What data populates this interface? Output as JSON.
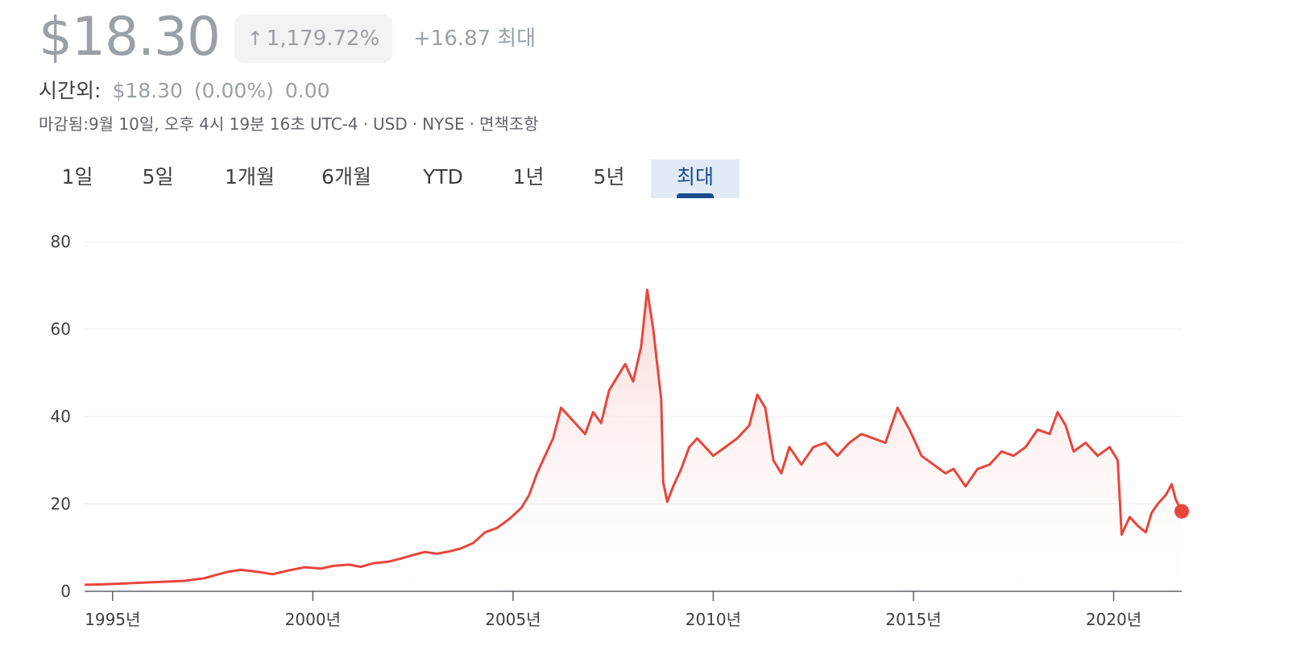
{
  "quote": {
    "price": "$18.30",
    "change_pct": "1,179.72%",
    "change_abs": "+16.87",
    "period_label": "최대",
    "arrow_icon": "arrow-up-icon"
  },
  "after_hours": {
    "label": "시간외:",
    "price": "$18.30",
    "pct": "(0.00%)",
    "change": "0.00"
  },
  "meta": {
    "closed": "마감됨:9월 10일, 오후 4시 19분 16초 UTC-4",
    "currency": "USD",
    "exchange": "NYSE",
    "disclaimer": "면책조항",
    "separator": "·"
  },
  "tabs": [
    {
      "label": "1일"
    },
    {
      "label": "5일"
    },
    {
      "label": "1개월"
    },
    {
      "label": "6개월"
    },
    {
      "label": "YTD"
    },
    {
      "label": "1년"
    },
    {
      "label": "5년"
    },
    {
      "label": "최대",
      "active": true
    }
  ],
  "colors": {
    "line": "#e8453c",
    "fill": "#fbe3e1",
    "grid": "#ececec",
    "tab_active_bg": "#e1ebf8",
    "tab_active_text": "#1a4b8c"
  },
  "chart_data": {
    "type": "line",
    "title": "",
    "xlabel": "",
    "ylabel": "",
    "ylim": [
      0,
      80
    ],
    "yticks": [
      0,
      20,
      40,
      60,
      80
    ],
    "xticks": [
      {
        "value": 1995,
        "label": "1995년"
      },
      {
        "value": 2000,
        "label": "2000년"
      },
      {
        "value": 2005,
        "label": "2005년"
      },
      {
        "value": 2010,
        "label": "2010년"
      },
      {
        "value": 2015,
        "label": "2015년"
      },
      {
        "value": 2020,
        "label": "2020년"
      }
    ],
    "xlim": [
      1994.3,
      2021.7
    ],
    "grid": true,
    "legend": "none",
    "series": [
      {
        "x": [
          1994.3,
          1994.8,
          1995.3,
          1995.8,
          1996.3,
          1996.8,
          1997.3,
          1997.6,
          1997.9,
          1998.2,
          1998.5,
          1998.8,
          1999.0,
          1999.4,
          1999.8,
          2000.2,
          2000.5,
          2000.9,
          2001.2,
          2001.5,
          2001.9,
          2002.2,
          2002.5,
          2002.8,
          2003.1,
          2003.4,
          2003.7,
          2004.0,
          2004.3,
          2004.6,
          2004.9,
          2005.2,
          2005.4,
          2005.6,
          2005.8,
          2006.0,
          2006.2,
          2006.4,
          2006.6,
          2006.8,
          2007.0,
          2007.2,
          2007.4,
          2007.6,
          2007.8,
          2008.0,
          2008.2,
          2008.35,
          2008.5,
          2008.6,
          2008.7,
          2008.75,
          2008.85,
          2009.0,
          2009.2,
          2009.4,
          2009.6,
          2009.8,
          2010.0,
          2010.3,
          2010.6,
          2010.9,
          2011.1,
          2011.3,
          2011.5,
          2011.7,
          2011.9,
          2012.2,
          2012.5,
          2012.8,
          2013.1,
          2013.4,
          2013.7,
          2014.0,
          2014.3,
          2014.6,
          2014.9,
          2015.2,
          2015.5,
          2015.8,
          2016.0,
          2016.3,
          2016.6,
          2016.9,
          2017.2,
          2017.5,
          2017.8,
          2018.1,
          2018.4,
          2018.6,
          2018.8,
          2019.0,
          2019.3,
          2019.6,
          2019.9,
          2020.1,
          2020.2,
          2020.4,
          2020.6,
          2020.8,
          2020.95,
          2021.1,
          2021.3,
          2021.45,
          2021.55,
          2021.7
        ],
        "values": [
          1.5,
          1.6,
          1.8,
          2.0,
          2.2,
          2.4,
          3.0,
          3.8,
          4.5,
          4.9,
          4.6,
          4.2,
          3.9,
          4.8,
          5.5,
          5.2,
          5.8,
          6.1,
          5.6,
          6.4,
          6.8,
          7.5,
          8.3,
          9.0,
          8.6,
          9.1,
          9.8,
          11.0,
          13.5,
          14.5,
          16.5,
          19.0,
          22.0,
          27.0,
          31.0,
          35.0,
          42.0,
          40.0,
          38.0,
          36.0,
          41.0,
          38.5,
          46.0,
          49.0,
          52.0,
          48.0,
          56.0,
          69.0,
          60.0,
          52.0,
          44.0,
          25.0,
          20.5,
          24.0,
          28.0,
          33.0,
          35.0,
          33.0,
          31.0,
          33.0,
          35.0,
          38.0,
          45.0,
          42.0,
          30.0,
          27.0,
          33.0,
          29.0,
          33.0,
          34.0,
          31.0,
          34.0,
          36.0,
          35.0,
          34.0,
          42.0,
          37.0,
          31.0,
          29.0,
          27.0,
          28.0,
          24.0,
          28.0,
          29.0,
          32.0,
          31.0,
          33.0,
          37.0,
          36.0,
          41.0,
          38.0,
          32.0,
          34.0,
          31.0,
          33.0,
          30.0,
          13.0,
          17.0,
          15.0,
          13.5,
          18.0,
          20.0,
          22.0,
          24.5,
          21.0,
          18.3
        ]
      }
    ]
  }
}
